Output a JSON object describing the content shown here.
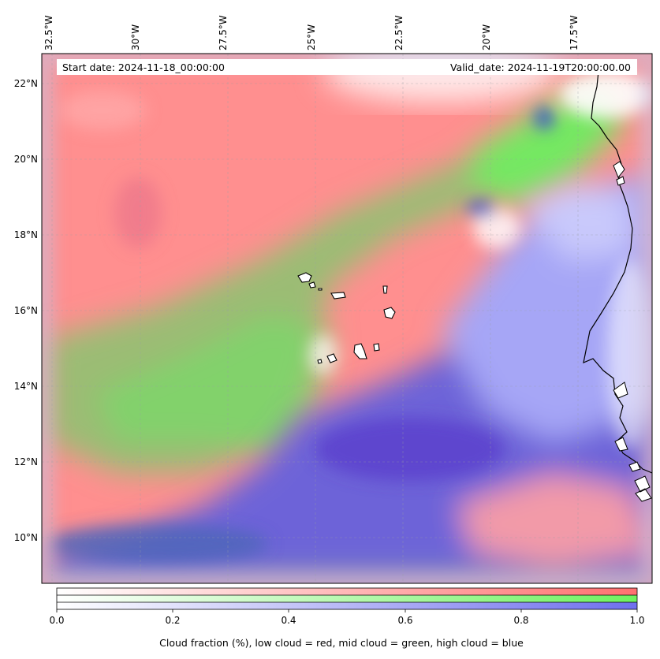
{
  "header": {
    "start_date": "Start date: 2024-11-18_00:00:00",
    "valid_date": "Valid_date: 2024-11-19T20:00:00.00"
  },
  "axes": {
    "lon_labels": [
      "32.5°W",
      "30°W",
      "27.5°W",
      "25°W",
      "22.5°W",
      "20°W",
      "17.5°W"
    ],
    "lat_labels": [
      "22°N",
      "20°N",
      "18°N",
      "16°N",
      "14°N",
      "12°N",
      "10°N"
    ]
  },
  "colorbar": {
    "ticks": [
      "0.0",
      "0.2",
      "0.4",
      "0.6",
      "0.8",
      "1.0"
    ],
    "label": "Cloud fraction (%), low cloud = red, mid cloud = green, high cloud = blue",
    "colors": {
      "low": "#ff7f7f",
      "mid": "#7fff6f",
      "high": "#7f7fff"
    }
  },
  "map_colors": {
    "low_cloud": "#ff8c8c",
    "mid_cloud": "#7fd463",
    "high_cloud": "#6a5fd6",
    "clear": "#ffffff",
    "coastline": "#000000"
  }
}
